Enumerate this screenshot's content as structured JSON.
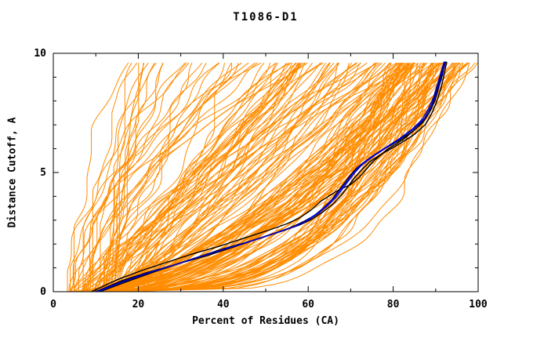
{
  "chart_data": {
    "type": "line",
    "title": "T1086-D1",
    "xlabel": "Percent of Residues (CA)",
    "ylabel": "Distance Cutoff, A",
    "xlim": [
      0,
      100
    ],
    "ylim": [
      0,
      10
    ],
    "x_ticks": [
      0,
      20,
      40,
      60,
      80,
      100
    ],
    "x_tick_labels": [
      "0",
      "20",
      "40",
      "60",
      "80",
      "100"
    ],
    "x_minor_ticks": [
      10,
      30,
      50,
      70,
      90
    ],
    "y_ticks": [
      0,
      5,
      10
    ],
    "y_tick_labels": [
      "0",
      "5",
      "10"
    ],
    "y_minor_ticks": [
      1,
      2,
      3,
      4,
      6,
      7,
      8,
      9
    ],
    "grid": false,
    "legend": "none",
    "colors": {
      "ensemble": "#ff8c00",
      "highlight_black": "#000000",
      "highlight_blue": "#0000cd",
      "axis": "#000000",
      "background": "#ffffff"
    },
    "ensemble": {
      "description": "per-model GDT curves (percent of CA residues under distance cutoff)",
      "count": 175,
      "seed": 987654321,
      "y_max_drawn": 9.65,
      "mixture": [
        {
          "weight": 0.5,
          "start": [
            4,
            16
          ],
          "end": [
            80,
            99
          ],
          "exp": [
            0.22,
            0.67
          ]
        },
        {
          "weight": 0.3,
          "start": [
            4,
            18
          ],
          "end": [
            50,
            90
          ],
          "exp": [
            0.45,
            1.35
          ]
        },
        {
          "weight": 0.2,
          "start": [
            3,
            15
          ],
          "end": [
            16,
            61
          ],
          "exp": [
            0.7,
            2.2
          ]
        }
      ],
      "wiggle": {
        "a1": [
          0.4,
          1.6
        ],
        "f1": [
          0.9,
          1.7
        ],
        "a2": [
          0.2,
          0.8
        ],
        "f2": [
          2.5,
          4.0
        ]
      }
    },
    "highlight_series": [
      {
        "name": "best-model-black-1",
        "color_key": "highlight_black",
        "points": [
          [
            10,
            0
          ],
          [
            16,
            0.45
          ],
          [
            22,
            0.8
          ],
          [
            28,
            1.1
          ],
          [
            34,
            1.45
          ],
          [
            40,
            1.8
          ],
          [
            46,
            2.1
          ],
          [
            52,
            2.45
          ],
          [
            56,
            2.7
          ],
          [
            59,
            2.95
          ],
          [
            61.5,
            3.2
          ],
          [
            63.5,
            3.5
          ],
          [
            65.5,
            3.85
          ],
          [
            67,
            4.2
          ],
          [
            68.5,
            4.55
          ],
          [
            70,
            4.9
          ],
          [
            71.5,
            5.2
          ],
          [
            74,
            5.55
          ],
          [
            77,
            5.9
          ],
          [
            81,
            6.3
          ],
          [
            84.5,
            6.7
          ],
          [
            87,
            7.1
          ],
          [
            88.5,
            7.5
          ],
          [
            89.8,
            8.0
          ],
          [
            90.8,
            8.6
          ],
          [
            91.6,
            9.1
          ],
          [
            92.2,
            9.65
          ]
        ]
      },
      {
        "name": "best-model-black-2",
        "color_key": "highlight_black",
        "points": [
          [
            11,
            0
          ],
          [
            17,
            0.4
          ],
          [
            24,
            0.85
          ],
          [
            30,
            1.2
          ],
          [
            36,
            1.5
          ],
          [
            42,
            1.85
          ],
          [
            48,
            2.2
          ],
          [
            54,
            2.55
          ],
          [
            58,
            2.8
          ],
          [
            61,
            3.05
          ],
          [
            63.5,
            3.35
          ],
          [
            66,
            3.7
          ],
          [
            68,
            4.1
          ],
          [
            69.5,
            4.45
          ],
          [
            71,
            4.8
          ],
          [
            72.5,
            5.1
          ],
          [
            74.5,
            5.45
          ],
          [
            77.5,
            5.8
          ],
          [
            81.5,
            6.2
          ],
          [
            85,
            6.6
          ],
          [
            87.5,
            7.0
          ],
          [
            89,
            7.45
          ],
          [
            90.2,
            7.95
          ],
          [
            91.2,
            8.5
          ],
          [
            92,
            9.1
          ],
          [
            92.6,
            9.65
          ]
        ]
      },
      {
        "name": "best-model-black-3",
        "color_key": "highlight_black",
        "points": [
          [
            9,
            0
          ],
          [
            15,
            0.5
          ],
          [
            21,
            0.9
          ],
          [
            27,
            1.25
          ],
          [
            33,
            1.6
          ],
          [
            39,
            1.9
          ],
          [
            45,
            2.25
          ],
          [
            51,
            2.6
          ],
          [
            55,
            2.85
          ],
          [
            58,
            3.1
          ],
          [
            60.5,
            3.4
          ],
          [
            63,
            3.8
          ],
          [
            66.5,
            4.2
          ],
          [
            70,
            4.5
          ],
          [
            72,
            4.8
          ],
          [
            73.5,
            5.1
          ],
          [
            75.5,
            5.5
          ],
          [
            78.5,
            5.95
          ],
          [
            82.5,
            6.4
          ],
          [
            85.5,
            6.85
          ],
          [
            87.5,
            7.3
          ],
          [
            89,
            7.8
          ],
          [
            90,
            8.3
          ],
          [
            91,
            8.9
          ],
          [
            91.8,
            9.4
          ],
          [
            92.3,
            9.65
          ]
        ]
      },
      {
        "name": "best-model-blue-1",
        "color_key": "highlight_blue",
        "points": [
          [
            10.5,
            0
          ],
          [
            16.5,
            0.42
          ],
          [
            23,
            0.82
          ],
          [
            29,
            1.15
          ],
          [
            35,
            1.5
          ],
          [
            41,
            1.82
          ],
          [
            47,
            2.15
          ],
          [
            53,
            2.5
          ],
          [
            57,
            2.75
          ],
          [
            60,
            3.0
          ],
          [
            62.5,
            3.3
          ],
          [
            64.5,
            3.6
          ],
          [
            66.5,
            3.95
          ],
          [
            68,
            4.3
          ],
          [
            69.5,
            4.65
          ],
          [
            71,
            5.0
          ],
          [
            72.8,
            5.35
          ],
          [
            75.5,
            5.7
          ],
          [
            78.5,
            6.05
          ],
          [
            82,
            6.45
          ],
          [
            85,
            6.85
          ],
          [
            87.3,
            7.25
          ],
          [
            88.8,
            7.7
          ],
          [
            90,
            8.2
          ],
          [
            91,
            8.8
          ],
          [
            91.8,
            9.3
          ],
          [
            92.4,
            9.65
          ]
        ]
      },
      {
        "name": "best-model-blue-2",
        "color_key": "highlight_blue",
        "points": [
          [
            10,
            0
          ],
          [
            16,
            0.4
          ],
          [
            22.5,
            0.8
          ],
          [
            28.5,
            1.12
          ],
          [
            34.5,
            1.47
          ],
          [
            40.5,
            1.8
          ],
          [
            46.5,
            2.12
          ],
          [
            52.5,
            2.47
          ],
          [
            56.5,
            2.72
          ],
          [
            59.5,
            2.97
          ],
          [
            62,
            3.27
          ],
          [
            64,
            3.57
          ],
          [
            66,
            3.92
          ],
          [
            67.5,
            4.27
          ],
          [
            69,
            4.62
          ],
          [
            70.5,
            4.97
          ],
          [
            72.3,
            5.32
          ],
          [
            75,
            5.67
          ],
          [
            78,
            6.02
          ],
          [
            81.5,
            6.42
          ],
          [
            84.5,
            6.82
          ],
          [
            86.8,
            7.22
          ],
          [
            88.3,
            7.67
          ],
          [
            89.5,
            8.15
          ],
          [
            90.5,
            8.75
          ],
          [
            91.4,
            9.28
          ],
          [
            92,
            9.65
          ]
        ]
      }
    ]
  }
}
